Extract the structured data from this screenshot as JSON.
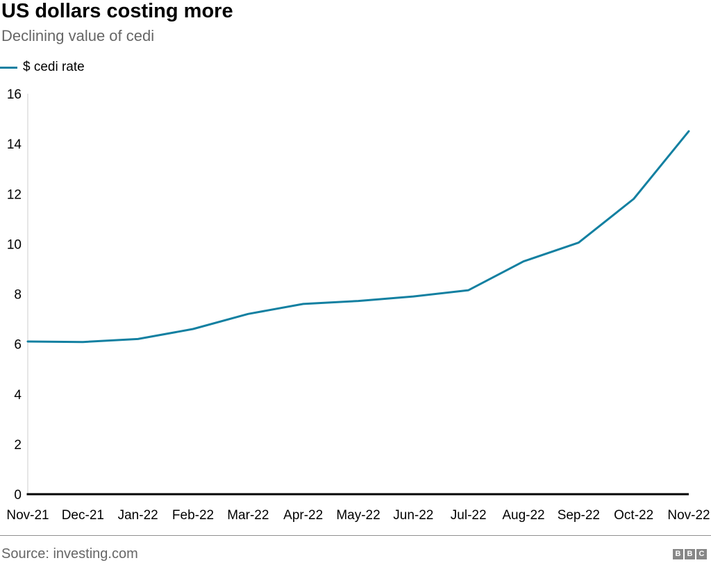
{
  "header": {
    "title": "US dollars costing more",
    "subtitle": "Declining value of cedi"
  },
  "legend": {
    "label": "$ cedi rate"
  },
  "chart_data": {
    "type": "line",
    "title": "US dollars costing more",
    "subtitle": "Declining value of cedi",
    "categories": [
      "Nov-21",
      "Dec-21",
      "Jan-22",
      "Feb-22",
      "Mar-22",
      "Apr-22",
      "May-22",
      "Jun-22",
      "Jul-22",
      "Aug-22",
      "Sep-22",
      "Oct-22",
      "Nov-22"
    ],
    "series": [
      {
        "name": "$ cedi rate",
        "values": [
          6.1,
          6.08,
          6.2,
          6.6,
          7.2,
          7.6,
          7.72,
          7.9,
          8.15,
          9.3,
          10.05,
          11.8,
          14.5
        ]
      }
    ],
    "xlabel": "",
    "ylabel": "",
    "ylim": [
      0,
      16
    ],
    "ytick_step": 2,
    "grid": false,
    "legend_position": "top-left",
    "colors": {
      "line": "#1380A1",
      "axis": "#cccccc",
      "baseline": "#000000",
      "bbc_gray": "#878787"
    }
  },
  "footer": {
    "source": "Source: investing.com",
    "logo": [
      "B",
      "B",
      "C"
    ]
  }
}
